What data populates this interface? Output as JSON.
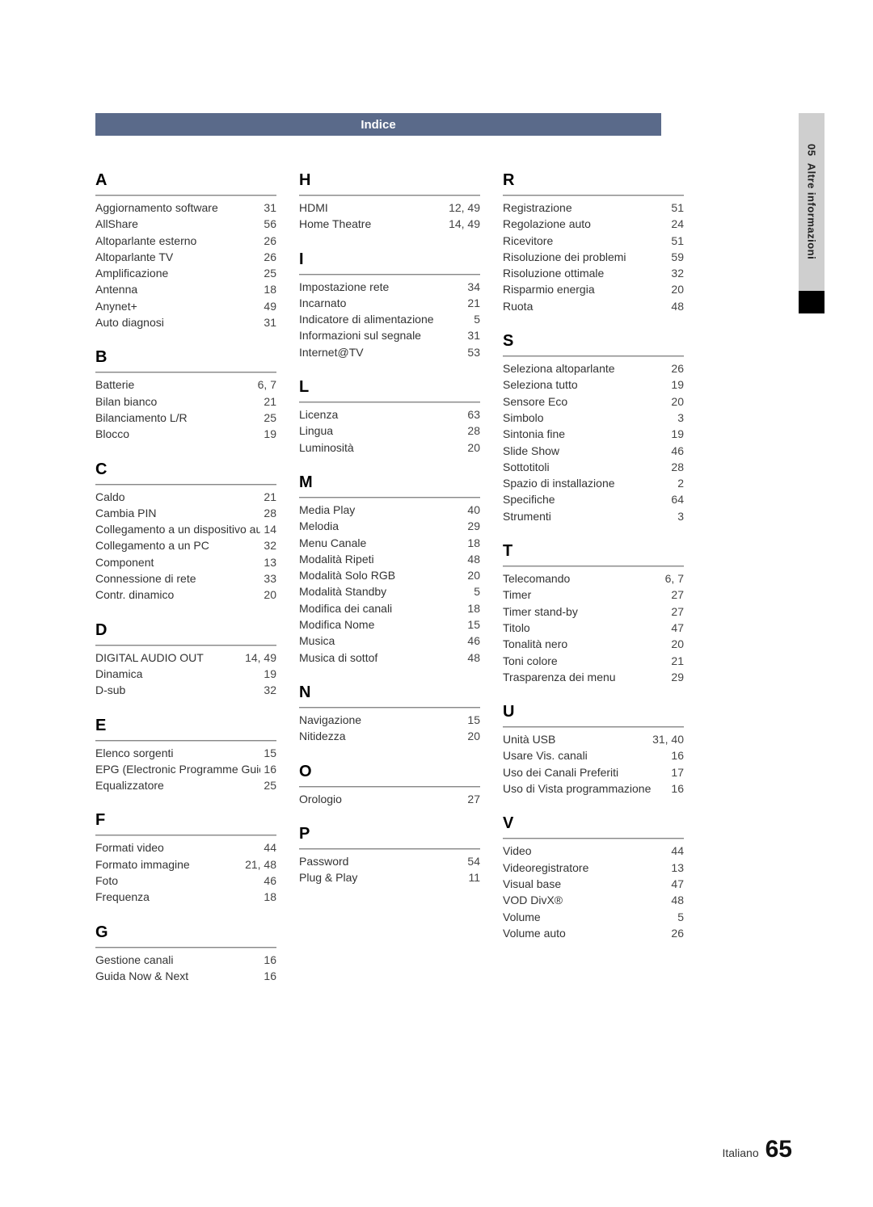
{
  "header": {
    "title": "Indice"
  },
  "side": {
    "chapter_num": "05",
    "chapter_title": "Altre informazioni"
  },
  "footer": {
    "language": "Italiano",
    "page": "65"
  },
  "index": {
    "col1": [
      {
        "letter": "A",
        "items": [
          {
            "term": "Aggiornamento software",
            "page": "31"
          },
          {
            "term": "AllShare",
            "page": "56"
          },
          {
            "term": "Altoparlante esterno",
            "page": "26"
          },
          {
            "term": "Altoparlante TV",
            "page": "26"
          },
          {
            "term": "Amplificazione",
            "page": "25"
          },
          {
            "term": "Antenna",
            "page": "18"
          },
          {
            "term": "Anynet+",
            "page": "49"
          },
          {
            "term": "Auto diagnosi",
            "page": "31"
          }
        ]
      },
      {
        "letter": "B",
        "items": [
          {
            "term": "Batterie",
            "page": "6, 7"
          },
          {
            "term": "Bilan bianco",
            "page": "21"
          },
          {
            "term": "Bilanciamento L/R",
            "page": "25"
          },
          {
            "term": "Blocco",
            "page": "19"
          }
        ]
      },
      {
        "letter": "C",
        "items": [
          {
            "term": "Caldo",
            "page": "21"
          },
          {
            "term": "Cambia PIN",
            "page": "28"
          },
          {
            "term": "Collegamento a un dispositivo audio",
            "page": "14"
          },
          {
            "term": "Collegamento a un PC",
            "page": "32"
          },
          {
            "term": "Component",
            "page": "13"
          },
          {
            "term": "Connessione di rete",
            "page": "33"
          },
          {
            "term": "Contr. dinamico",
            "page": "20"
          }
        ]
      },
      {
        "letter": "D",
        "items": [
          {
            "term": "DIGITAL AUDIO OUT",
            "page": "14, 49"
          },
          {
            "term": "Dinamica",
            "page": "19"
          },
          {
            "term": "D-sub",
            "page": "32"
          }
        ]
      },
      {
        "letter": "E",
        "items": [
          {
            "term": "Elenco sorgenti",
            "page": "15"
          },
          {
            "term": "EPG (Electronic Programme Guide)",
            "page": "16"
          },
          {
            "term": "Equalizzatore",
            "page": "25"
          }
        ]
      },
      {
        "letter": "F",
        "items": [
          {
            "term": "Formati video",
            "page": "44"
          },
          {
            "term": "Formato immagine",
            "page": "21, 48"
          },
          {
            "term": "Foto",
            "page": "46"
          },
          {
            "term": "Frequenza",
            "page": "18"
          }
        ]
      },
      {
        "letter": "G",
        "items": [
          {
            "term": "Gestione canali",
            "page": "16"
          },
          {
            "term": "Guida Now & Next",
            "page": "16"
          }
        ]
      }
    ],
    "col2": [
      {
        "letter": "H",
        "items": [
          {
            "term": "HDMI",
            "page": "12, 49"
          },
          {
            "term": "Home Theatre",
            "page": "14, 49"
          }
        ]
      },
      {
        "letter": "I",
        "items": [
          {
            "term": "Impostazione rete",
            "page": "34"
          },
          {
            "term": "Incarnato",
            "page": "21"
          },
          {
            "term": "Indicatore di alimentazione",
            "page": "5"
          },
          {
            "term": "Informazioni sul segnale",
            "page": "31"
          },
          {
            "term": "Internet@TV",
            "page": "53"
          }
        ]
      },
      {
        "letter": "L",
        "items": [
          {
            "term": "Licenza",
            "page": "63"
          },
          {
            "term": "Lingua",
            "page": "28"
          },
          {
            "term": "Luminosità",
            "page": "20"
          }
        ]
      },
      {
        "letter": "M",
        "items": [
          {
            "term": "Media Play",
            "page": "40"
          },
          {
            "term": "Melodia",
            "page": "29"
          },
          {
            "term": "Menu Canale",
            "page": "18"
          },
          {
            "term": "Modalità Ripeti",
            "page": "48"
          },
          {
            "term": "Modalità Solo RGB",
            "page": "20"
          },
          {
            "term": "Modalità Standby",
            "page": "5"
          },
          {
            "term": "Modifica dei canali",
            "page": "18"
          },
          {
            "term": "Modifica Nome",
            "page": "15"
          },
          {
            "term": "Musica",
            "page": "46"
          },
          {
            "term": "Musica di sottof",
            "page": "48"
          }
        ]
      },
      {
        "letter": "N",
        "items": [
          {
            "term": "Navigazione",
            "page": "15"
          },
          {
            "term": "Nitidezza",
            "page": "20"
          }
        ]
      },
      {
        "letter": "O",
        "items": [
          {
            "term": "Orologio",
            "page": "27"
          }
        ]
      },
      {
        "letter": "P",
        "items": [
          {
            "term": "Password",
            "page": "54"
          },
          {
            "term": "Plug & Play",
            "page": "11"
          }
        ]
      }
    ],
    "col3": [
      {
        "letter": "R",
        "items": [
          {
            "term": "Registrazione",
            "page": "51"
          },
          {
            "term": "Regolazione auto",
            "page": "24"
          },
          {
            "term": "Ricevitore",
            "page": "51"
          },
          {
            "term": "Risoluzione dei problemi",
            "page": "59"
          },
          {
            "term": "Risoluzione ottimale",
            "page": "32"
          },
          {
            "term": "Risparmio energia",
            "page": "20"
          },
          {
            "term": "Ruota",
            "page": "48"
          }
        ]
      },
      {
        "letter": "S",
        "items": [
          {
            "term": "Seleziona altoparlante",
            "page": "26"
          },
          {
            "term": "Seleziona tutto",
            "page": "19"
          },
          {
            "term": "Sensore Eco",
            "page": "20"
          },
          {
            "term": "Simbolo",
            "page": "3"
          },
          {
            "term": "Sintonia fine",
            "page": "19"
          },
          {
            "term": "Slide Show",
            "page": "46"
          },
          {
            "term": "Sottotitoli",
            "page": "28"
          },
          {
            "term": "Spazio di installazione",
            "page": "2"
          },
          {
            "term": "Specifiche",
            "page": "64"
          },
          {
            "term": "Strumenti",
            "page": "3"
          }
        ]
      },
      {
        "letter": "T",
        "items": [
          {
            "term": "Telecomando",
            "page": "6, 7"
          },
          {
            "term": "Timer",
            "page": "27"
          },
          {
            "term": "Timer stand-by",
            "page": "27"
          },
          {
            "term": "Titolo",
            "page": "47"
          },
          {
            "term": "Tonalità nero",
            "page": "20"
          },
          {
            "term": "Toni colore",
            "page": "21"
          },
          {
            "term": "Trasparenza dei menu",
            "page": "29"
          }
        ]
      },
      {
        "letter": "U",
        "items": [
          {
            "term": "Unità USB",
            "page": "31, 40"
          },
          {
            "term": "Usare Vis. canali",
            "page": "16"
          },
          {
            "term": "Uso dei Canali Preferiti",
            "page": "17"
          },
          {
            "term": "Uso di Vista programmazione",
            "page": "16"
          }
        ]
      },
      {
        "letter": "V",
        "items": [
          {
            "term": "Video",
            "page": "44"
          },
          {
            "term": "Videoregistratore",
            "page": "13"
          },
          {
            "term": "Visual base",
            "page": "47"
          },
          {
            "term": "VOD DivX®",
            "page": "48"
          },
          {
            "term": "Volume",
            "page": "5"
          },
          {
            "term": "Volume auto",
            "page": "26"
          }
        ]
      }
    ]
  }
}
